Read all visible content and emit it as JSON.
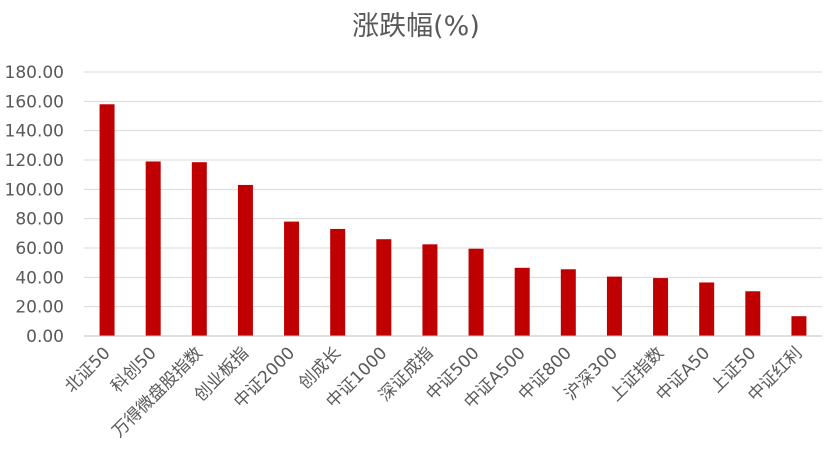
{
  "chart_data": {
    "type": "bar",
    "title": "涨跌幅(%)",
    "xlabel": "",
    "ylabel": "",
    "ylim": [
      0,
      180
    ],
    "y_ticks": [
      "0.00",
      "20.00",
      "40.00",
      "60.00",
      "80.00",
      "100.00",
      "120.00",
      "140.00",
      "160.00",
      "180.00"
    ],
    "grid": true,
    "legend": "none",
    "bar_color": "#c00000",
    "categories": [
      "北证50",
      "科创50",
      "万得微盘股指数",
      "创业板指",
      "中证2000",
      "创成长",
      "中证1000",
      "深证成指",
      "中证500",
      "中证A500",
      "中证800",
      "沪深300",
      "上证指数",
      "中证A50",
      "上证50",
      "中证红利"
    ],
    "values": [
      158,
      119,
      118.5,
      103,
      78,
      73,
      66,
      62.5,
      59.5,
      46.5,
      45.5,
      40.5,
      39.5,
      36.5,
      30.5,
      13.5
    ]
  }
}
